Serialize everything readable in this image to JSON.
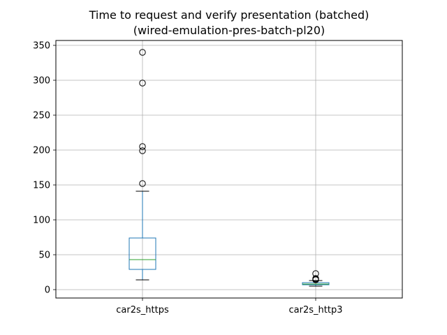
{
  "chart_data": {
    "type": "box",
    "title": "Time to request and verify presentation (batched)",
    "subtitle": "(wired-emulation-pres-batch-pl20)",
    "xlabel": "",
    "ylabel": "",
    "ylim": [
      -12,
      357
    ],
    "yticks": [
      0,
      50,
      100,
      150,
      200,
      250,
      300,
      350
    ],
    "grid": true,
    "categories": [
      "car2s_https",
      "car2s_http3"
    ],
    "boxes": [
      {
        "name": "car2s_https",
        "whislo": 14,
        "q1": 29,
        "median": 43,
        "q3": 74,
        "whishi": 141,
        "fliers": [
          152,
          199,
          205,
          296,
          340
        ]
      },
      {
        "name": "car2s_http3",
        "whislo": 5,
        "q1": 7,
        "median": 8,
        "q3": 10,
        "whishi": 13,
        "fliers": [
          14,
          15,
          16,
          23
        ]
      }
    ],
    "colors": {
      "box": "#1f77b4",
      "median": "#2ca02c",
      "whisker": "#000000",
      "grid": "#b0b0b0",
      "flier": "#000000"
    }
  }
}
